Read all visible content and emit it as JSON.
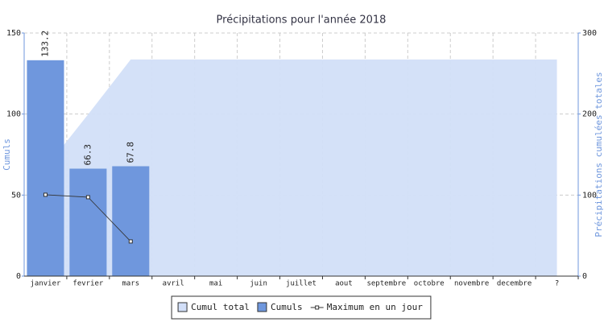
{
  "chart_data": {
    "type": "bar",
    "title": "Précipitations pour l'année 2018",
    "ylabel": "Cumuls",
    "y2label": "Précipitations cumulées totales",
    "categories": [
      "janvier",
      "fevrier",
      "mars",
      "avril",
      "mai",
      "juin",
      "juillet",
      "aout",
      "septembre",
      "octobre",
      "novembre",
      "decembre",
      "?"
    ],
    "series": [
      {
        "name": "Cumul total",
        "type": "area",
        "axis": "y2",
        "color": "#d2dff8",
        "values": [
          133.2,
          199.5,
          267.3,
          267.3,
          267.3,
          267.3,
          267.3,
          267.3,
          267.3,
          267.3,
          267.3,
          267.3,
          267.3
        ]
      },
      {
        "name": "Cumuls",
        "type": "bar",
        "color": "#6f97dd",
        "data_labels": true,
        "values": [
          133.2,
          66.3,
          67.8,
          null,
          null,
          null,
          null,
          null,
          null,
          null,
          null,
          null,
          null
        ]
      },
      {
        "name": "Maximum en un jour",
        "type": "line",
        "color": "#333333",
        "values": [
          50.2,
          48.7,
          21.4,
          null,
          null,
          null,
          null,
          null,
          null,
          null,
          null,
          null,
          null
        ]
      }
    ],
    "ylim": [
      0,
      150
    ],
    "yticks": [
      0,
      50,
      100,
      150
    ],
    "y2lim": [
      0,
      300
    ],
    "y2ticks": [
      0,
      100,
      200,
      300
    ],
    "grid": true,
    "legend": "bottom"
  }
}
